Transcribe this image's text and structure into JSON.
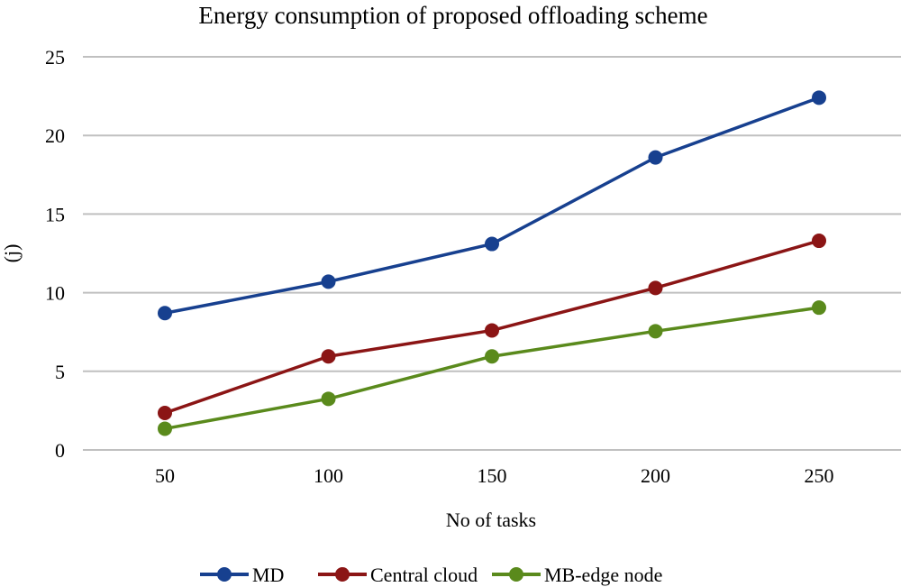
{
  "chart_data": {
    "type": "line",
    "title": "Energy consumption of proposed offloading scheme",
    "xlabel": "No of tasks",
    "ylabel": "(j)",
    "categories": [
      "50",
      "100",
      "150",
      "200",
      "250"
    ],
    "x": [
      50,
      100,
      150,
      200,
      250
    ],
    "ylim": [
      0,
      25
    ],
    "yticks": [
      0,
      5,
      10,
      15,
      20,
      25
    ],
    "grid": true,
    "legend_position": "bottom",
    "series": [
      {
        "name": "MD",
        "color": "#17408f",
        "values": [
          8.7,
          10.7,
          13.1,
          18.6,
          22.4
        ]
      },
      {
        "name": "Central cloud",
        "color": "#8b1515",
        "values": [
          2.35,
          5.95,
          7.6,
          10.3,
          13.3
        ]
      },
      {
        "name": "MB-edge node",
        "color": "#5a8a1c",
        "values": [
          1.35,
          3.25,
          5.95,
          7.55,
          9.05
        ]
      }
    ]
  }
}
